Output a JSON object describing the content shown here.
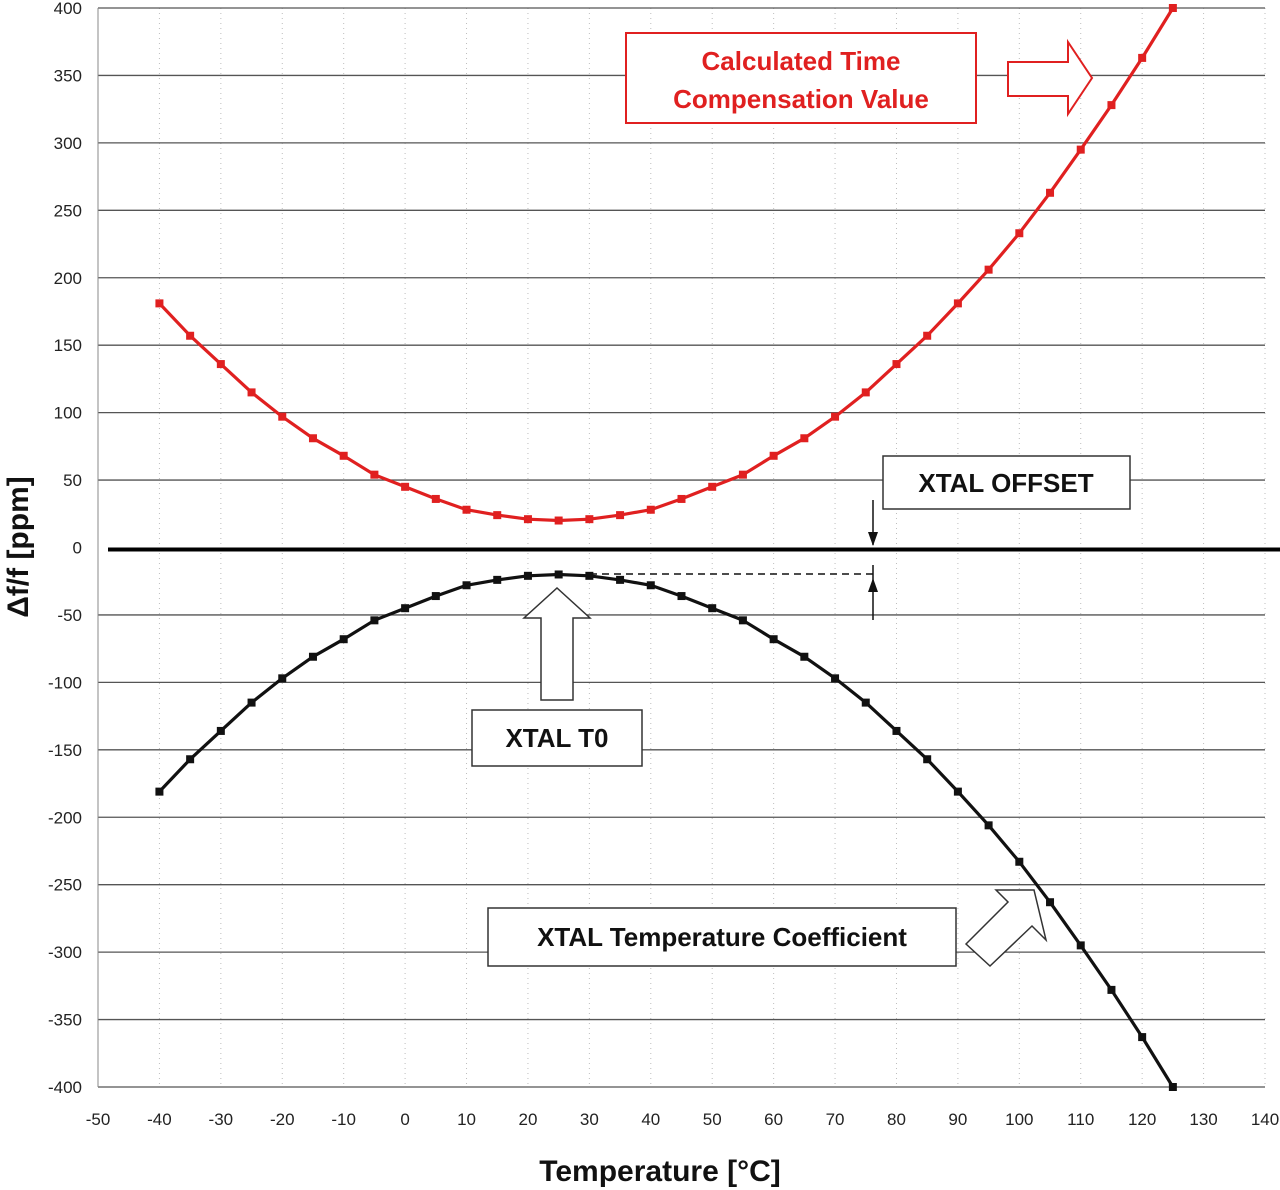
{
  "chart_data": {
    "type": "line",
    "title": "",
    "xlabel": "Temperature [°C]",
    "ylabel": "Δf/f   [ppm]",
    "xlim": [
      -50,
      140
    ],
    "ylim": [
      -400,
      400
    ],
    "x_ticks": [
      -50,
      -40,
      -30,
      -20,
      -10,
      0,
      10,
      20,
      30,
      40,
      50,
      60,
      70,
      80,
      90,
      100,
      110,
      120,
      130,
      140
    ],
    "y_ticks": [
      400,
      350,
      300,
      250,
      200,
      150,
      100,
      50,
      0,
      -50,
      -100,
      -150,
      -200,
      -250,
      -300,
      -350,
      -400
    ],
    "grid": {
      "horizontal": "solid",
      "vertical": "dotted"
    },
    "series": [
      {
        "color": "#e02020",
        "x": [
          -40,
          -35,
          -30,
          -25,
          -20,
          -15,
          -10,
          -5,
          0,
          5,
          10,
          15,
          20,
          25,
          30,
          35,
          40,
          45,
          50,
          55,
          60,
          65,
          70,
          75,
          80,
          85,
          90,
          95,
          100,
          105,
          110,
          115,
          120,
          125
        ],
        "values": [
          181,
          157,
          136,
          115,
          97,
          81,
          68,
          54,
          45,
          36,
          28,
          24,
          21,
          20,
          21,
          24,
          28,
          36,
          45,
          54,
          68,
          81,
          97,
          115,
          136,
          157,
          181,
          206,
          233,
          263,
          295,
          328,
          363,
          400
        ]
      },
      {
        "color": "#111111",
        "x": [
          -40,
          -35,
          -30,
          -25,
          -20,
          -15,
          -10,
          -5,
          0,
          5,
          10,
          15,
          20,
          25,
          30,
          35,
          40,
          45,
          50,
          55,
          60,
          65,
          70,
          75,
          80,
          85,
          90,
          95,
          100,
          105,
          110,
          115,
          120,
          125
        ],
        "values": [
          -181,
          -157,
          -136,
          -115,
          -97,
          -81,
          -68,
          -54,
          -45,
          -36,
          -28,
          -24,
          -21,
          -20,
          -21,
          -24,
          -28,
          -36,
          -45,
          -54,
          -68,
          -81,
          -97,
          -115,
          -136,
          -157,
          -181,
          -206,
          -233,
          -263,
          -295,
          -328,
          -363,
          -400
        ]
      }
    ],
    "annotations": {
      "calc_line1": "Calculated Time",
      "calc_line2": "Compensation Value",
      "xtal_offset": "XTAL OFFSET",
      "xtal_t0": "XTAL T0",
      "xtal_tc": "XTAL Temperature Coefficient"
    },
    "colors": {
      "red": "#e02020",
      "black": "#111111",
      "grid": "#555555"
    }
  }
}
